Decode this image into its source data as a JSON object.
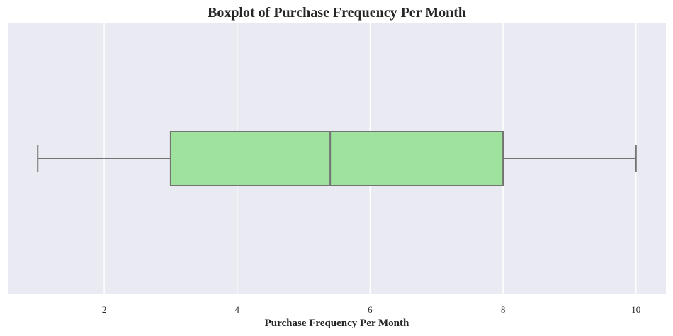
{
  "chart_data": {
    "type": "boxplot",
    "title": "Boxplot of Purchase Frequency Per Month",
    "xlabel": "Purchase Frequency Per Month",
    "ylabel": "",
    "orientation": "horizontal",
    "xlim": [
      0.55,
      10.45
    ],
    "xticks": [
      2,
      4,
      6,
      8,
      10
    ],
    "grid": true,
    "box": {
      "min": 1,
      "q1": 3,
      "median": 5.4,
      "q3": 8,
      "max": 10
    },
    "colors": {
      "background": "#eaeaf2",
      "grid": "#ffffff",
      "box_fill": "#9ee29e",
      "line": "#737373"
    }
  }
}
